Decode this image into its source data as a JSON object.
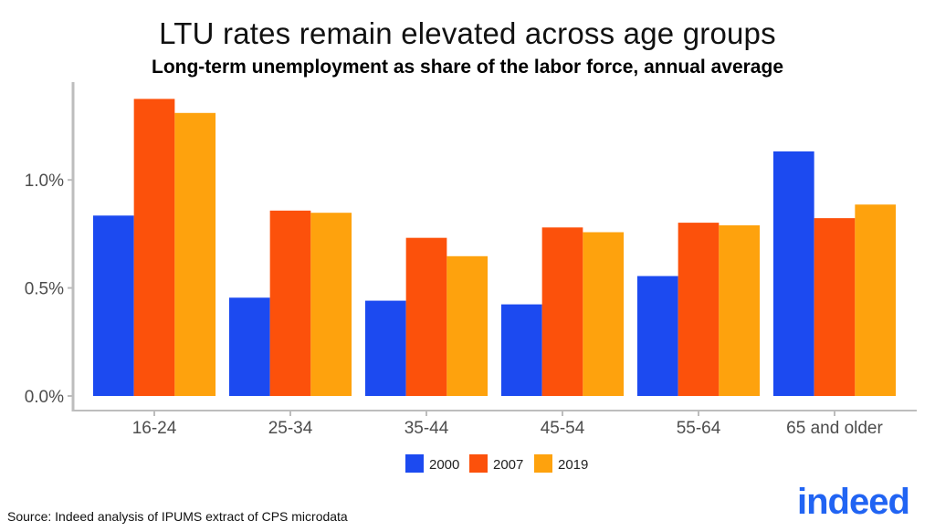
{
  "chart_data": {
    "type": "bar",
    "title": "LTU rates remain elevated across age groups",
    "subtitle": "Long-term unemployment as share of the labor force, annual average",
    "xlabel": "",
    "ylabel": "",
    "categories": [
      "16-24",
      "25-34",
      "35-44",
      "45-54",
      "55-64",
      "65 and older"
    ],
    "series": [
      {
        "name": "2000",
        "color": "#1c4af0",
        "values": [
          0.835,
          0.455,
          0.441,
          0.424,
          0.555,
          1.132
        ]
      },
      {
        "name": "2007",
        "color": "#fc510b",
        "values": [
          1.375,
          0.858,
          0.732,
          0.78,
          0.802,
          0.823
        ]
      },
      {
        "name": "2019",
        "color": "#fea20d",
        "values": [
          1.31,
          0.848,
          0.647,
          0.758,
          0.79,
          0.886
        ]
      }
    ],
    "ylim": [
      0,
      1.42
    ],
    "yticks": [
      0,
      0.5,
      1.0
    ],
    "ytick_labels": [
      "0.0%",
      "0.5%",
      "1.0%"
    ],
    "grid": false,
    "legend": "bottom"
  },
  "source": "Source: Indeed analysis of IPUMS extract of CPS microdata",
  "logo": "indeed"
}
